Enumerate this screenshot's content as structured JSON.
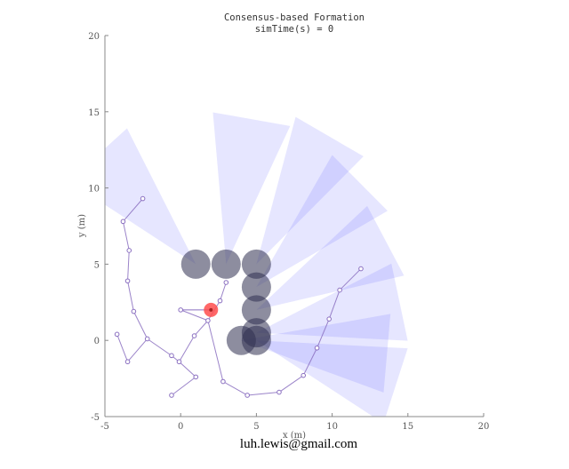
{
  "chart_data": {
    "type": "scatter",
    "title": "Consensus-based Formation",
    "subtitle": "simTime(s) = 0",
    "xlabel": "x (m)",
    "ylabel": "y (m)",
    "xlim": [
      -5,
      20
    ],
    "ylim": [
      -5,
      20
    ],
    "xticks": [
      "-5",
      "0",
      "5",
      "10",
      "15",
      "20"
    ],
    "yticks": [
      "-5",
      "0",
      "5",
      "10",
      "15",
      "20"
    ],
    "grid": false,
    "graph_nodes": [
      [
        -2.5,
        9.3
      ],
      [
        -3.8,
        7.8
      ],
      [
        -3.4,
        5.9
      ],
      [
        -3.5,
        3.9
      ],
      [
        -3.1,
        1.9
      ],
      [
        -4.2,
        0.4
      ],
      [
        -3.5,
        -1.4
      ],
      [
        -2.2,
        0.1
      ],
      [
        -0.6,
        -1.0
      ],
      [
        -0.1,
        -1.4
      ],
      [
        0.9,
        0.3
      ],
      [
        1.8,
        1.3
      ],
      [
        0.0,
        2.0
      ],
      [
        2.6,
        2.6
      ],
      [
        3.0,
        3.8
      ],
      [
        1.0,
        -2.4
      ],
      [
        -0.6,
        -3.6
      ],
      [
        2.8,
        -2.7
      ],
      [
        4.4,
        -3.6
      ],
      [
        6.5,
        -3.4
      ],
      [
        8.1,
        -2.3
      ],
      [
        9.0,
        -0.5
      ],
      [
        9.8,
        1.4
      ],
      [
        10.5,
        3.3
      ],
      [
        11.9,
        4.7
      ]
    ],
    "graph_edges": [
      [
        0,
        1
      ],
      [
        1,
        2
      ],
      [
        2,
        3
      ],
      [
        3,
        4
      ],
      [
        4,
        7
      ],
      [
        7,
        6
      ],
      [
        6,
        5
      ],
      [
        7,
        8
      ],
      [
        8,
        9
      ],
      [
        9,
        10
      ],
      [
        10,
        11
      ],
      [
        11,
        12
      ],
      [
        11,
        13
      ],
      [
        13,
        14
      ],
      [
        9,
        15
      ],
      [
        15,
        16
      ],
      [
        11,
        17
      ],
      [
        17,
        18
      ],
      [
        18,
        19
      ],
      [
        19,
        20
      ],
      [
        20,
        21
      ],
      [
        21,
        22
      ],
      [
        22,
        23
      ],
      [
        23,
        24
      ]
    ],
    "leader": {
      "x": 2.0,
      "y": 2.0,
      "color": "#ff4d4d"
    },
    "agents": [
      {
        "x": 1.0,
        "y": 5.0,
        "heading_deg": 132
      },
      {
        "x": 3.0,
        "y": 5.0,
        "heading_deg": 80
      },
      {
        "x": 5.0,
        "y": 5.0,
        "heading_deg": 60
      },
      {
        "x": 5.0,
        "y": 3.5,
        "heading_deg": 45
      },
      {
        "x": 5.0,
        "y": 2.0,
        "heading_deg": 28
      },
      {
        "x": 5.0,
        "y": 0.5,
        "heading_deg": 12
      },
      {
        "x": 4.0,
        "y": 0.0,
        "heading_deg": -5
      },
      {
        "x": 5.0,
        "y": 0.0,
        "heading_deg": -18
      }
    ],
    "agent_color": "#303050",
    "sensor_color": "#4040ff",
    "sensor_range_m": 10,
    "sensor_halfangle_deg": 15,
    "edge_color": "#8a6fc0"
  },
  "watermark": "luh.lewis@gmail.com"
}
